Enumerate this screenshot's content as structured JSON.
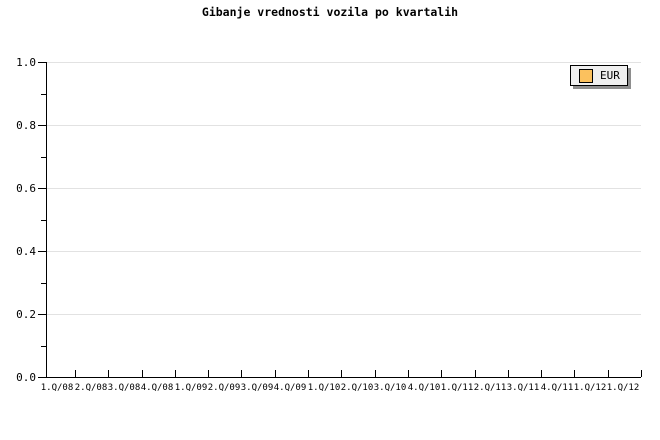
{
  "title": "Gibanje vrednosti vozila po kvartalih",
  "legend": {
    "position": "top-right",
    "items": [
      {
        "label": "EUR",
        "color": "#fbc15e"
      }
    ]
  },
  "colors": {
    "background": "#ffffff",
    "axis": "#000000",
    "grid": "#e2e2e2",
    "text": "#000000",
    "legend_background": "#efefef",
    "legend_border": "#000000",
    "legend_shadow": "#8e8e8e",
    "series_eur": "#fbc15e"
  },
  "chart_data": {
    "type": "line",
    "title": "Gibanje vrednosti vozila po kvartalih",
    "xlabel": "",
    "ylabel": "",
    "categories": [
      "1.Q/08",
      "2.Q/08",
      "3.Q/08",
      "4.Q/08",
      "1.Q/09",
      "2.Q/09",
      "3.Q/09",
      "4.Q/09",
      "1.Q/10",
      "2.Q/10",
      "3.Q/10",
      "4.Q/10",
      "1.Q/11",
      "2.Q/11",
      "3.Q/11",
      "4.Q/11",
      "1.Q/12",
      "1.Q/12"
    ],
    "series": [
      {
        "name": "EUR",
        "color": "#fbc15e",
        "values": []
      }
    ],
    "ylim": [
      0,
      1
    ],
    "y_ticks": [
      "1.0",
      "0.8",
      "0.6",
      "0.4",
      "0.2",
      "0.0"
    ],
    "y_major_step": 0.2,
    "y_minor_step": 0.1,
    "grid": "horizontal-major",
    "legend_position": "top-right",
    "plot_empty": true
  }
}
